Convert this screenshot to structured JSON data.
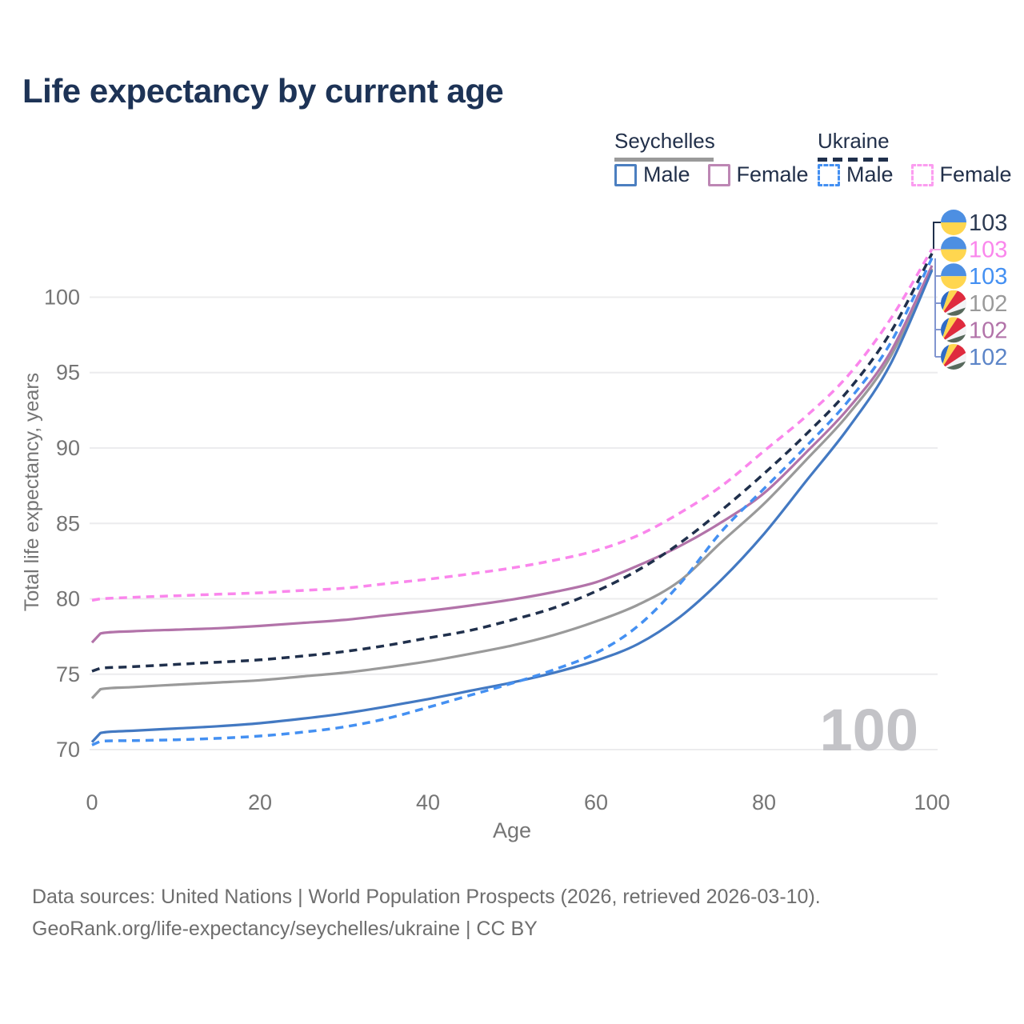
{
  "title": "Life expectancy by current age",
  "legend": {
    "countries": [
      {
        "name": "Seychelles",
        "line_style": "solid",
        "line_color": "#9A9A9A"
      },
      {
        "name": "Ukraine",
        "line_style": "dashed",
        "line_color": "#20304C"
      }
    ],
    "items": [
      {
        "country": "Seychelles",
        "label": "Male",
        "swatch_color": "#4C7FC0",
        "style": "solid"
      },
      {
        "country": "Seychelles",
        "label": "Female",
        "swatch_color": "#BD86B4",
        "style": "solid"
      },
      {
        "country": "Ukraine",
        "label": "Male",
        "swatch_color": "#4490F2",
        "style": "dashed"
      },
      {
        "country": "Ukraine",
        "label": "Female",
        "swatch_color": "#FB9DF0",
        "style": "dashed"
      }
    ]
  },
  "chart_data": {
    "type": "line",
    "title": "Life expectancy by current age",
    "xlabel": "Age",
    "ylabel": "Total life expectancy, years",
    "xlim": [
      0,
      100
    ],
    "ylim": [
      69.5,
      103.5
    ],
    "x_ticks": [
      0,
      20,
      40,
      60,
      80,
      100
    ],
    "y_ticks": [
      70,
      75,
      80,
      85,
      90,
      95,
      100
    ],
    "grid": "horizontal",
    "legend_position": "top-right",
    "ages": [
      0,
      1,
      5,
      10,
      15,
      20,
      25,
      30,
      35,
      40,
      45,
      50,
      55,
      60,
      65,
      70,
      75,
      80,
      85,
      90,
      95,
      100
    ],
    "series": [
      {
        "name": "Seychelles",
        "sex": "Both",
        "color": "#9A9A9A",
        "style": "solid",
        "values": [
          73.4,
          74.0,
          74.15,
          74.3,
          74.45,
          74.6,
          74.85,
          75.1,
          75.45,
          75.85,
          76.35,
          76.9,
          77.6,
          78.5,
          79.6,
          81.2,
          83.8,
          86.3,
          89.2,
          92.2,
          96.0,
          101.9
        ]
      },
      {
        "name": "Seychelles Female",
        "sex": "Female",
        "color": "#B273A9",
        "style": "solid",
        "values": [
          77.1,
          77.7,
          77.85,
          77.95,
          78.05,
          78.2,
          78.4,
          78.6,
          78.9,
          79.2,
          79.55,
          79.95,
          80.45,
          81.1,
          82.2,
          83.5,
          85.1,
          87.0,
          89.7,
          92.6,
          96.3,
          102.1
        ]
      },
      {
        "name": "Seychelles Male",
        "sex": "Male",
        "color": "#4379C2",
        "style": "solid",
        "values": [
          70.5,
          71.1,
          71.25,
          71.4,
          71.55,
          71.75,
          72.05,
          72.4,
          72.85,
          73.35,
          73.9,
          74.45,
          75.1,
          75.9,
          77.0,
          78.8,
          81.3,
          84.3,
          87.8,
          91.3,
          95.5,
          101.8
        ]
      },
      {
        "name": "Ukraine",
        "sex": "Both",
        "color": "#20304C",
        "style": "dashed",
        "values": [
          75.2,
          75.4,
          75.5,
          75.65,
          75.8,
          75.95,
          76.2,
          76.5,
          76.9,
          77.4,
          77.9,
          78.6,
          79.4,
          80.5,
          81.9,
          83.7,
          85.9,
          88.3,
          90.9,
          93.8,
          97.6,
          102.9
        ]
      },
      {
        "name": "Ukraine Female",
        "sex": "Female",
        "color": "#FA86EC",
        "style": "dashed",
        "values": [
          79.9,
          80.0,
          80.1,
          80.2,
          80.3,
          80.4,
          80.55,
          80.7,
          81.0,
          81.3,
          81.65,
          82.05,
          82.55,
          83.2,
          84.2,
          85.7,
          87.5,
          89.8,
          92.1,
          94.8,
          98.5,
          103.2
        ]
      },
      {
        "name": "Ukraine Male",
        "sex": "Male",
        "color": "#4490F2",
        "style": "dashed",
        "values": [
          70.3,
          70.55,
          70.6,
          70.65,
          70.75,
          70.9,
          71.15,
          71.5,
          72.05,
          72.8,
          73.6,
          74.4,
          75.3,
          76.4,
          78.2,
          81.0,
          84.5,
          87.3,
          90.1,
          93.1,
          96.9,
          102.6
        ]
      }
    ],
    "end_labels": [
      {
        "value": "103",
        "flag": "ukraine",
        "color": "#2C3A52"
      },
      {
        "value": "103",
        "flag": "ukraine",
        "color": "#FA86EC"
      },
      {
        "value": "103",
        "flag": "ukraine",
        "color": "#4490F2"
      },
      {
        "value": "102",
        "flag": "seychelles",
        "color": "#9A9A9A"
      },
      {
        "value": "102",
        "flag": "seychelles",
        "color": "#B273A9"
      },
      {
        "value": "102",
        "flag": "seychelles",
        "color": "#5C85C8"
      }
    ],
    "watermark_age": "100"
  },
  "colors": {
    "title": "#1D3356",
    "axis_text": "#757575",
    "gridline": "#ECECEE",
    "watermark": "#C3C3C7",
    "legend_text": "#22304A",
    "footer_text": "#6E6E6E"
  },
  "footer": {
    "line1": "Data sources: United Nations | World Population Prospects (2026, retrieved 2026-03-10).",
    "line2": "GeoRank.org/life-expectancy/seychelles/ukraine | CC BY"
  }
}
